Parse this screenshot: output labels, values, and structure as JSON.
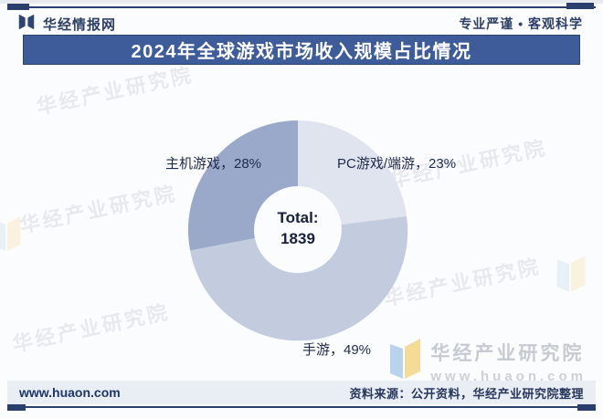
{
  "header": {
    "brand": "华经情报网",
    "slogan": "专业严谨 • 客观科学"
  },
  "title": "2024年全球游戏市场收入规模占比情况",
  "chart_data": {
    "type": "pie",
    "subtype": "donut",
    "title": "2024年全球游戏市场收入规模占比情况",
    "start_angle": "top, clockwise",
    "total": 1839,
    "center_label_line1": "Total:",
    "center_label_line2": "1839",
    "series": [
      {
        "name": "PC游戏/端游",
        "value": 23,
        "color": "#dfe4ee"
      },
      {
        "name": "手游",
        "value": 49,
        "color": "#c3ccde"
      },
      {
        "name": "主机游戏",
        "value": 28,
        "color": "#9aa9ca"
      }
    ]
  },
  "watermark": {
    "text": "华经产业研究院",
    "url": "www.huaon.com"
  },
  "footer": {
    "website": "www.huaon.com",
    "source": "资料来源：公开资料，华经产业研究院整理"
  },
  "colors": {
    "accent": "#2b3f6e",
    "title_bar": "#3d5c99",
    "footer_bar": "#e9edf4",
    "label_text": "#1f2a4a"
  }
}
